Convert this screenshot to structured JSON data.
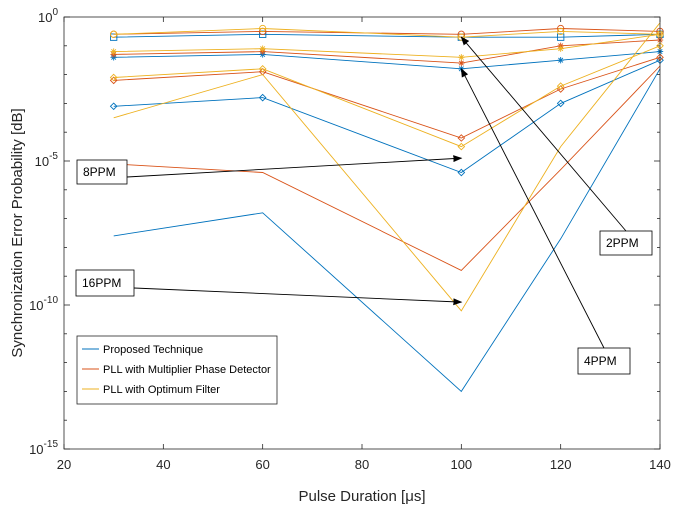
{
  "chart_data": {
    "type": "line",
    "xlabel": "Pulse Duration [μs]",
    "ylabel": "Synchronization Error Probability [dB]",
    "xlim": [
      20,
      140
    ],
    "ylim_log10": [
      -15,
      0
    ],
    "yscale": "log",
    "x_ticks": [
      "20",
      "40",
      "60",
      "80",
      "100",
      "120",
      "140"
    ],
    "y_ticks": [
      {
        "base": "10",
        "exp": "0",
        "log": 0
      },
      {
        "base": "10",
        "exp": "-5",
        "log": -5
      },
      {
        "base": "10",
        "exp": "-10",
        "log": -10
      },
      {
        "base": "10",
        "exp": "-15",
        "log": -15
      }
    ],
    "x": [
      30,
      60,
      100,
      120,
      140
    ],
    "colors": {
      "proposed": "#0072BD",
      "multiplier": "#D95319",
      "optimum": "#EDB120"
    },
    "series": [
      {
        "group": "proposed",
        "marker": "none",
        "log10_values": [
          -7.6,
          -6.8,
          -13.0,
          -7.7,
          -1.8
        ]
      },
      {
        "group": "proposed",
        "marker": "diamond",
        "log10_values": [
          -3.1,
          -2.8,
          -5.4,
          -3.0,
          -1.5
        ]
      },
      {
        "group": "proposed",
        "marker": "asterisk",
        "log10_values": [
          -1.4,
          -1.3,
          -1.8,
          -1.5,
          -1.2
        ]
      },
      {
        "group": "proposed",
        "marker": "square",
        "log10_values": [
          -0.7,
          -0.6,
          -0.7,
          -0.7,
          -0.6
        ]
      },
      {
        "group": "multiplier",
        "marker": "none",
        "log10_values": [
          -5.1,
          -5.4,
          -8.8,
          -5.3,
          -1.7
        ]
      },
      {
        "group": "multiplier",
        "marker": "diamond",
        "log10_values": [
          -2.2,
          -1.9,
          -4.2,
          -2.5,
          -1.4
        ]
      },
      {
        "group": "multiplier",
        "marker": "asterisk",
        "log10_values": [
          -1.3,
          -1.2,
          -1.6,
          -1.0,
          -0.8
        ]
      },
      {
        "group": "multiplier",
        "marker": "circle",
        "log10_values": [
          -0.6,
          -0.5,
          -0.6,
          -0.4,
          -0.5
        ]
      },
      {
        "group": "optimum",
        "marker": "none",
        "log10_values": [
          -3.5,
          -2.0,
          -10.2,
          -4.5,
          -0.2
        ]
      },
      {
        "group": "optimum",
        "marker": "diamond",
        "log10_values": [
          -2.1,
          -1.8,
          -4.5,
          -2.4,
          -1.0
        ]
      },
      {
        "group": "optimum",
        "marker": "asterisk",
        "log10_values": [
          -1.2,
          -1.1,
          -1.4,
          -1.1,
          -0.6
        ]
      },
      {
        "group": "optimum",
        "marker": "circle",
        "log10_values": [
          -0.6,
          -0.4,
          -0.7,
          -0.5,
          -0.6
        ]
      }
    ],
    "legend": {
      "placement": "lower-left",
      "entries": [
        {
          "group": "proposed",
          "label": "Proposed Technique"
        },
        {
          "group": "multiplier",
          "label": "PLL with Multiplier Phase Detector"
        },
        {
          "group": "optimum",
          "label": "PLL with Optimum Filter"
        }
      ]
    },
    "annotations": [
      {
        "label": "8PPM",
        "target": [
          100,
          -4.9
        ]
      },
      {
        "label": "16PPM",
        "target": [
          100,
          -9.9
        ]
      },
      {
        "label": "2PPM",
        "target": [
          100,
          -0.7
        ]
      },
      {
        "label": "4PPM",
        "target": [
          100,
          -1.8
        ]
      }
    ]
  }
}
